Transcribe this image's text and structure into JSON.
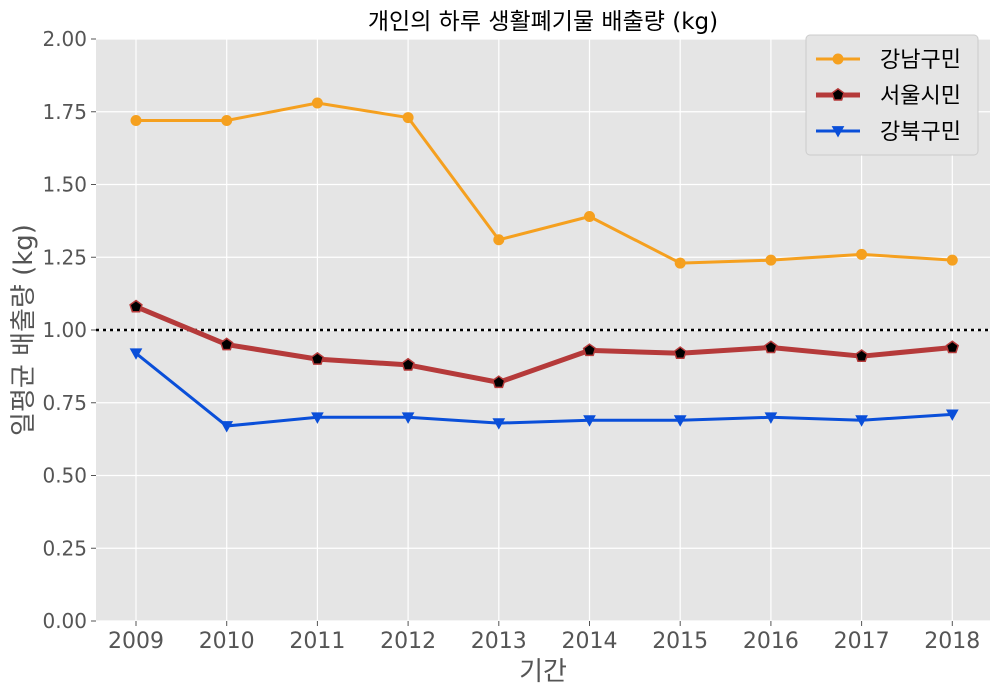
{
  "chart_data": {
    "type": "line",
    "title": "개인의 하루 생활폐기물 배출량 (kg)",
    "xlabel": "기간",
    "ylabel": "일평균 배출량 (kg)",
    "categories": [
      "2009",
      "2010",
      "2011",
      "2012",
      "2013",
      "2014",
      "2015",
      "2016",
      "2017",
      "2018"
    ],
    "ylim": [
      0,
      2.0
    ],
    "yticks": [
      "0.00",
      "0.25",
      "0.50",
      "0.75",
      "1.00",
      "1.25",
      "1.50",
      "1.75",
      "2.00"
    ],
    "reference_line": 1.0,
    "grid": true,
    "legend_position": "top-right",
    "series": [
      {
        "name": "강남구민",
        "values": [
          1.72,
          1.72,
          1.78,
          1.73,
          1.31,
          1.39,
          1.23,
          1.24,
          1.26,
          1.24
        ],
        "color": "#f5a01f",
        "marker": "circle"
      },
      {
        "name": "서울시민",
        "values": [
          1.08,
          0.95,
          0.9,
          0.88,
          0.82,
          0.93,
          0.92,
          0.94,
          0.91,
          0.94
        ],
        "color": "#b53a3a",
        "marker": "pentagon"
      },
      {
        "name": "강북구민",
        "values": [
          0.92,
          0.67,
          0.7,
          0.7,
          0.68,
          0.69,
          0.69,
          0.7,
          0.69,
          0.71
        ],
        "color": "#0a4fd9",
        "marker": "triangle-down"
      }
    ]
  }
}
